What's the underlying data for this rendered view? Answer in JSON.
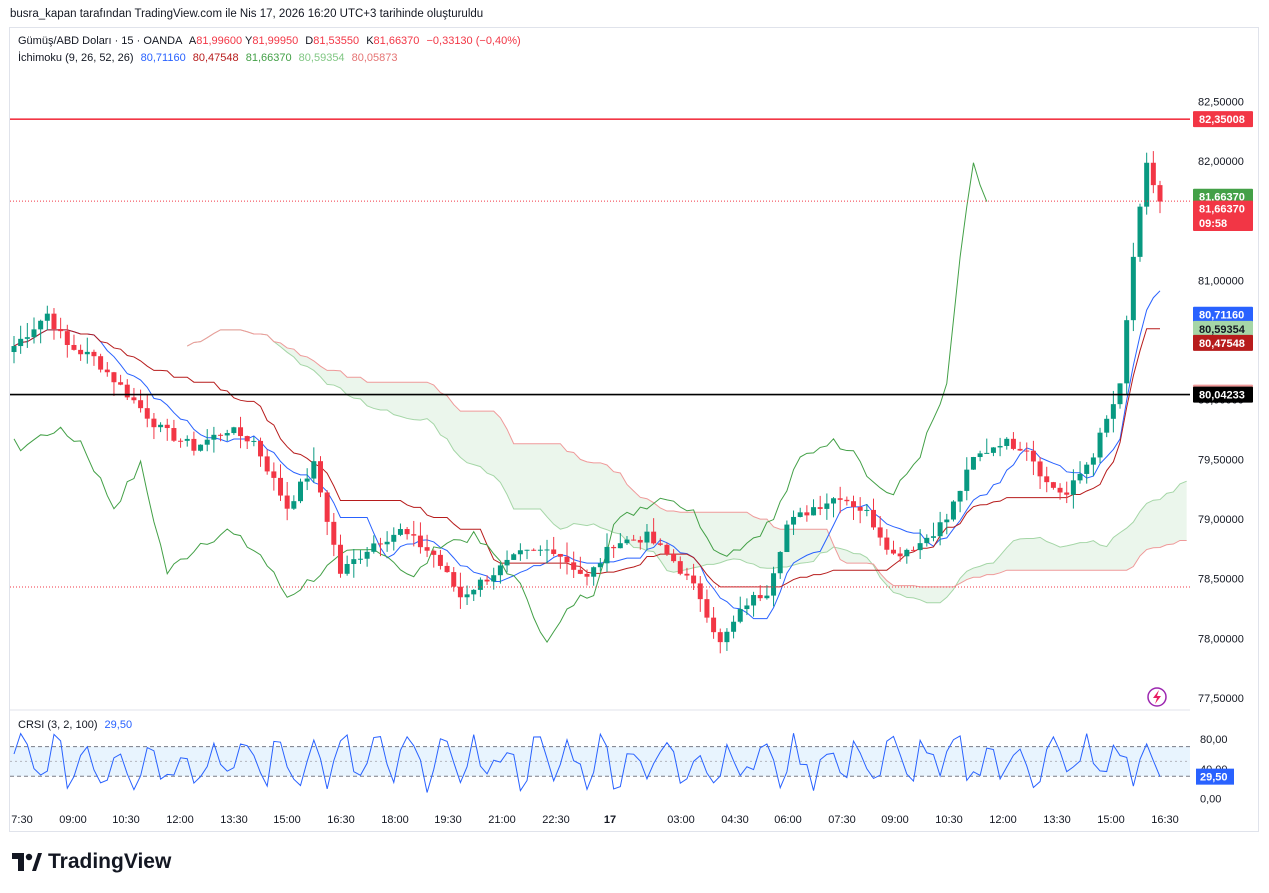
{
  "header": {
    "title": "busra_kapan tarafından TradingView.com ile Nis 17, 2026 16:20 UTC+3 tarihinde oluşturuldu"
  },
  "legend": {
    "symbol": "Gümüş/ABD Doları · 15 · OANDA",
    "o_label": "A",
    "o_value": "81,99600",
    "h_label": "Y",
    "h_value": "81,99950",
    "l_label": "D",
    "l_value": "81,53550",
    "c_label": "K",
    "c_value": "81,66370",
    "change": "−0,33130 (−0,40%)",
    "ichimoku_label": "İchimoku (9, 26, 52, 26)",
    "ichimoku_values": [
      "80,71160",
      "80,47548",
      "81,66370",
      "80,59354",
      "80,05873"
    ],
    "crsi_label": "CRSI (3, 2, 100)",
    "crsi_value": "29,50"
  },
  "colors": {
    "up": "#089981",
    "down": "#f23645",
    "tenkan": "#2962ff",
    "kijun": "#b71c1c",
    "chikou": "#43a047",
    "span_a": "#a5d6a7",
    "span_b": "#ef9a9a",
    "crsi": "#2962ff"
  },
  "price_labels": [
    {
      "text": "82,35008",
      "bg": "#f23645",
      "fg": "#ffffff",
      "price": 82.35008
    },
    {
      "text": "81,66370",
      "bg": "#43a047",
      "fg": "#ffffff",
      "price": 81.7
    },
    {
      "text": "81,66370",
      "bg": "#f23645",
      "fg": "#ffffff",
      "price": 81.6
    },
    {
      "text": "09:58",
      "bg": "#f23645",
      "fg": "#ffffff",
      "price": 81.48
    },
    {
      "text": "80,71160",
      "bg": "#2962ff",
      "fg": "#ffffff",
      "price": 80.7116
    },
    {
      "text": "80,59354",
      "bg": "#a5d6a7",
      "fg": "#131722",
      "price": 80.59354
    },
    {
      "text": "80,47548",
      "bg": "#b71c1c",
      "fg": "#ffffff",
      "price": 80.47548
    },
    {
      "text": "80,05873",
      "bg": "#ef9a9a",
      "fg": "#131722",
      "price": 80.05873
    },
    {
      "text": "80,04233",
      "bg": "#000000",
      "fg": "#ffffff",
      "price": 80.04233
    }
  ],
  "crsi_labels": [
    {
      "text": "29,50",
      "bg": "#2962ff",
      "fg": "#ffffff",
      "value": 29.5
    }
  ],
  "chart_data": {
    "type": "candlestick",
    "y_ticks": [
      "82,50000",
      "82,00000",
      "81,50000",
      "81,00000",
      "80,50000",
      "80,00000",
      "79,50000",
      "79,00000",
      "78,50000",
      "78,00000",
      "77,50000"
    ],
    "y_tick_values": [
      82.5,
      82.0,
      81.5,
      81.0,
      80.5,
      80.0,
      79.5,
      79.0,
      78.5,
      78.0,
      77.5
    ],
    "ylim": [
      77.4,
      82.72
    ],
    "x_ticks": [
      "7:30",
      "09:00",
      "10:30",
      "12:00",
      "13:30",
      "15:00",
      "16:30",
      "18:00",
      "19:30",
      "21:00",
      "22:30",
      "17",
      "03:00",
      "04:30",
      "06:00",
      "07:30",
      "09:00",
      "10:30",
      "12:00",
      "13:30",
      "15:00",
      "16:30"
    ],
    "horizontal_lines": [
      {
        "price": 82.35008,
        "color": "#f23645"
      },
      {
        "price": 80.04233,
        "color": "#000000"
      }
    ],
    "dotted_lines": [
      {
        "price": 81.6637,
        "color": "#f23645"
      },
      {
        "price": 78.43,
        "color": "#f23645"
      }
    ],
    "last_price": 81.6637,
    "crsi": {
      "y_ticks": [
        "80,00",
        "40,00",
        "0,00"
      ],
      "y_tick_values": [
        80,
        40,
        0
      ],
      "upper_band": 70,
      "lower_band": 30,
      "ylim": [
        -10,
        95
      ],
      "value": 29.5
    }
  }
}
